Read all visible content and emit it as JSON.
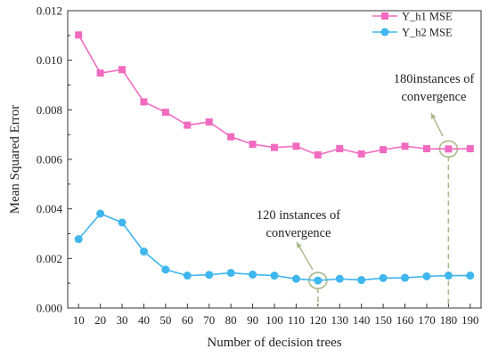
{
  "chart_data": {
    "type": "line",
    "title": "",
    "xlabel": "Number of decision trees",
    "ylabel": "Mean Squared Error",
    "x": [
      10,
      20,
      30,
      40,
      50,
      60,
      70,
      80,
      90,
      100,
      110,
      120,
      130,
      140,
      150,
      160,
      170,
      180,
      190
    ],
    "xlim": [
      5,
      195
    ],
    "ylim": [
      0,
      0.012
    ],
    "yticks": [
      "0.000",
      "0.002",
      "0.004",
      "0.006",
      "0.008",
      "0.010",
      "0.012"
    ],
    "grid": false,
    "legend_position": "top-right",
    "series": [
      {
        "name": "Y_h1 MSE",
        "color": "#f06bbf",
        "marker": "square",
        "values": [
          0.01102,
          0.00948,
          0.00962,
          0.00832,
          0.0079,
          0.00738,
          0.00751,
          0.00691,
          0.00661,
          0.00648,
          0.00653,
          0.00618,
          0.00643,
          0.00622,
          0.00639,
          0.00653,
          0.00643,
          0.00642,
          0.00643
        ]
      },
      {
        "name": "Y_h2 MSE",
        "color": "#3fb6ee",
        "marker": "circle",
        "values": [
          0.00278,
          0.00381,
          0.00345,
          0.00228,
          0.00155,
          0.00131,
          0.00134,
          0.00142,
          0.00135,
          0.00131,
          0.00118,
          0.00111,
          0.00118,
          0.00113,
          0.00121,
          0.00122,
          0.00128,
          0.00131,
          0.00131
        ]
      }
    ],
    "annotations": [
      {
        "lines": [
          "120 instances of",
          "convergence"
        ],
        "x": 120,
        "series": 1
      },
      {
        "lines": [
          "180instances of",
          "convergence"
        ],
        "x": 180,
        "series": 0
      }
    ],
    "annotation_color": "#a8ba8a"
  }
}
